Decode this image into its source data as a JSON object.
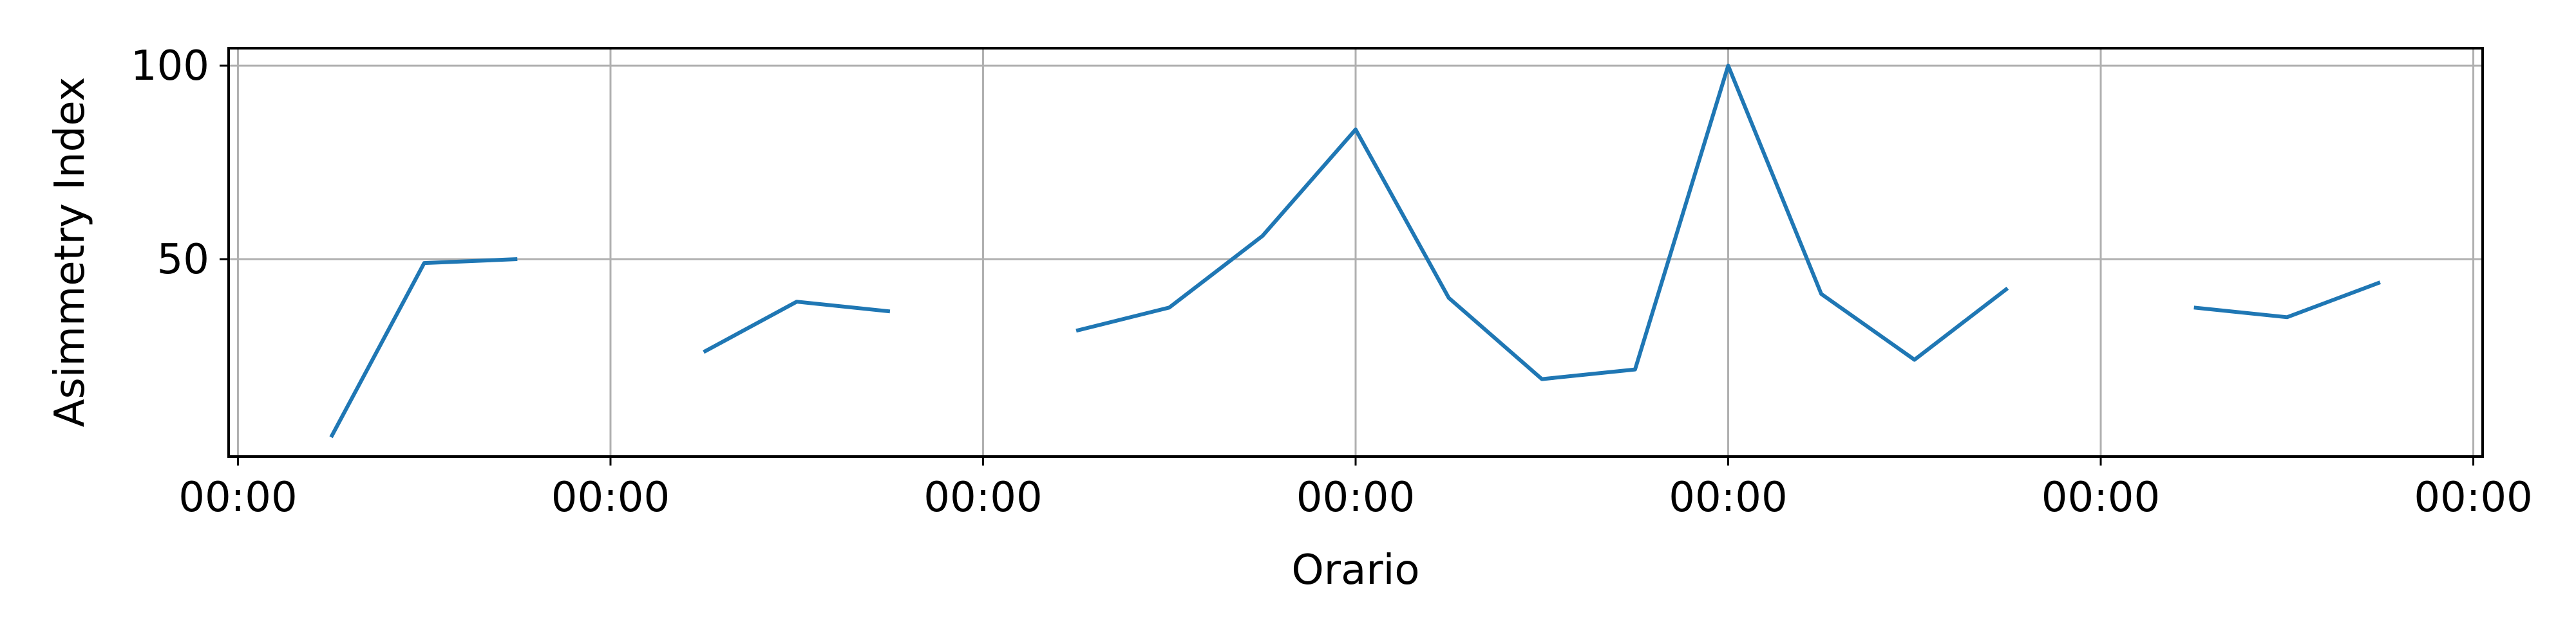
{
  "chart_data": {
    "type": "line",
    "title": "",
    "xlabel": "Orario",
    "ylabel": "Asimmetry Index",
    "x_tick_labels": [
      "00:00",
      "00:00",
      "00:00",
      "00:00",
      "00:00",
      "00:00",
      "00:00"
    ],
    "x_tick_positions": [
      0,
      4,
      8,
      12,
      16,
      20,
      24
    ],
    "y_ticks": [
      50,
      100
    ],
    "xlim": [
      -0.1,
      24.1
    ],
    "ylim": [
      -1,
      104.5
    ],
    "grid": true,
    "series": [
      {
        "color": "#1f77b4",
        "points": [
          [
            1,
            4
          ],
          [
            2,
            49
          ],
          [
            3,
            50
          ],
          [
            3.5,
            null
          ],
          [
            5,
            26
          ],
          [
            6,
            39
          ],
          [
            7,
            36.5
          ],
          [
            7.5,
            null
          ],
          [
            9,
            31.5
          ],
          [
            10,
            37.5
          ],
          [
            11,
            56
          ],
          [
            12,
            83.5
          ],
          [
            13,
            40
          ],
          [
            14,
            19
          ],
          [
            15,
            21.5
          ],
          [
            16,
            100
          ],
          [
            17,
            41
          ],
          [
            18,
            24
          ],
          [
            19,
            42.5
          ],
          [
            19.5,
            null
          ],
          [
            21,
            37.5
          ],
          [
            22,
            35
          ],
          [
            23,
            44
          ]
        ]
      }
    ]
  }
}
